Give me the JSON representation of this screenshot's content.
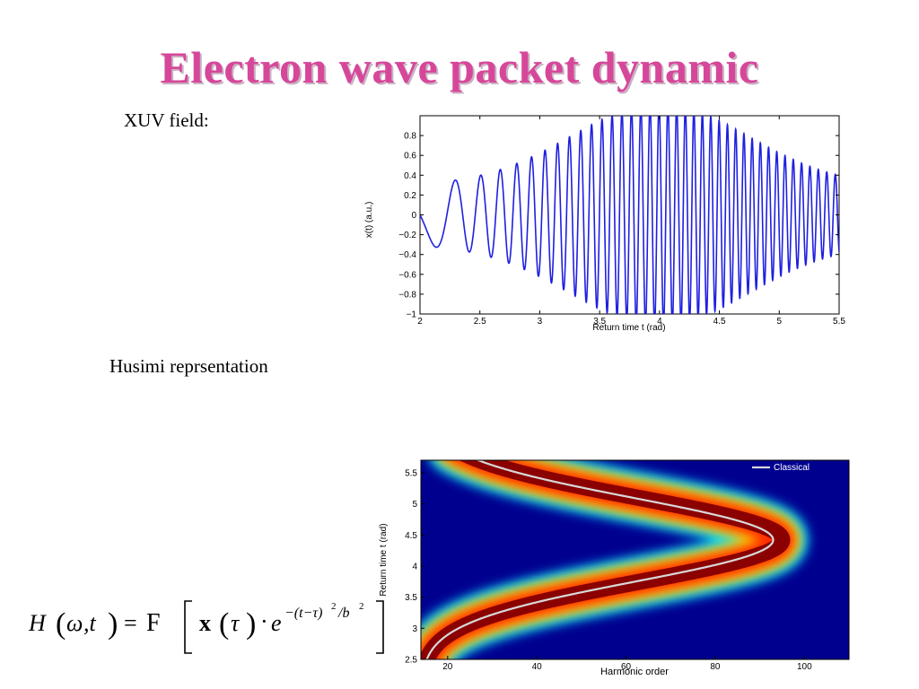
{
  "slide": {
    "title": "Electron wave packet dynamic",
    "xuv_label": "XUV field:",
    "husimi_label": "Husimi reprsentation",
    "title_color": "#d6479a"
  },
  "equation": {
    "lhs": "H",
    "omega": "ω",
    "comma_t": ",t",
    "equals": "=",
    "transform": "F",
    "x": "x",
    "tau": "τ",
    "dot": "·",
    "e": "e",
    "exponent": "−(t−τ)",
    "exp_sq": "2",
    "exp_div": "/b",
    "exp_b2": "2"
  },
  "chart_data": [
    {
      "type": "line",
      "title": "",
      "xlabel": "Return time t  (rad)",
      "ylabel": "x(t) (a.u.)",
      "xlim": [
        2,
        5.5
      ],
      "ylim": [
        -1,
        1
      ],
      "xticks": [
        "2",
        "2.5",
        "3",
        "3.5",
        "4",
        "4.5",
        "5",
        "5.5"
      ],
      "yticks": [
        "−1",
        "−0.8",
        "−0.6",
        "−0.4",
        "−0.2",
        "0",
        "0.2",
        "0.4",
        "0.6",
        "0.8"
      ],
      "series": [
        {
          "color": "#1f1fe0",
          "description_shape": "chirped oscillation, envelope peaks near t≈4",
          "points": [
            [
              2.0,
              0.0
            ],
            [
              2.1,
              -0.12
            ],
            [
              2.2,
              -0.26
            ],
            [
              2.3,
              0.05
            ],
            [
              2.4,
              0.46
            ],
            [
              2.5,
              0.1
            ],
            [
              2.6,
              -0.63
            ],
            [
              2.7,
              0.3
            ],
            [
              2.73,
              0.73
            ],
            [
              2.8,
              -0.3
            ],
            [
              2.85,
              -0.8
            ],
            [
              2.9,
              0.2
            ],
            [
              2.95,
              0.82
            ],
            [
              3.0,
              -0.1
            ],
            [
              3.05,
              -0.8
            ],
            [
              3.5,
              0.85
            ],
            [
              4.0,
              -1.0
            ],
            [
              4.5,
              0.95
            ],
            [
              5.0,
              -0.72
            ],
            [
              5.3,
              0.32
            ],
            [
              5.5,
              0.05
            ]
          ]
        }
      ],
      "grid": false
    },
    {
      "type": "heatmap",
      "title": "",
      "xlabel": "Harmonic order",
      "ylabel": "Return time t  (rad)",
      "xlim": [
        14,
        110
      ],
      "ylim": [
        2.5,
        5.7
      ],
      "xticks": [
        "20",
        "40",
        "60",
        "80",
        "100"
      ],
      "yticks": [
        "2.5",
        "3",
        "3.5",
        "4",
        "4.5",
        "5",
        "5.5"
      ],
      "legend": {
        "entries": [
          "Classical"
        ],
        "position": "top-right"
      },
      "colormap": "jet",
      "classical_curve": {
        "color": "#d8d8d8",
        "points": [
          [
            14,
            2.5
          ],
          [
            40,
            3.2
          ],
          [
            60,
            3.55
          ],
          [
            80,
            3.9
          ],
          [
            88,
            4.1
          ],
          [
            93,
            4.4
          ],
          [
            88,
            4.7
          ],
          [
            75,
            5.0
          ],
          [
            55,
            5.35
          ],
          [
            40,
            5.6
          ]
        ]
      }
    }
  ]
}
